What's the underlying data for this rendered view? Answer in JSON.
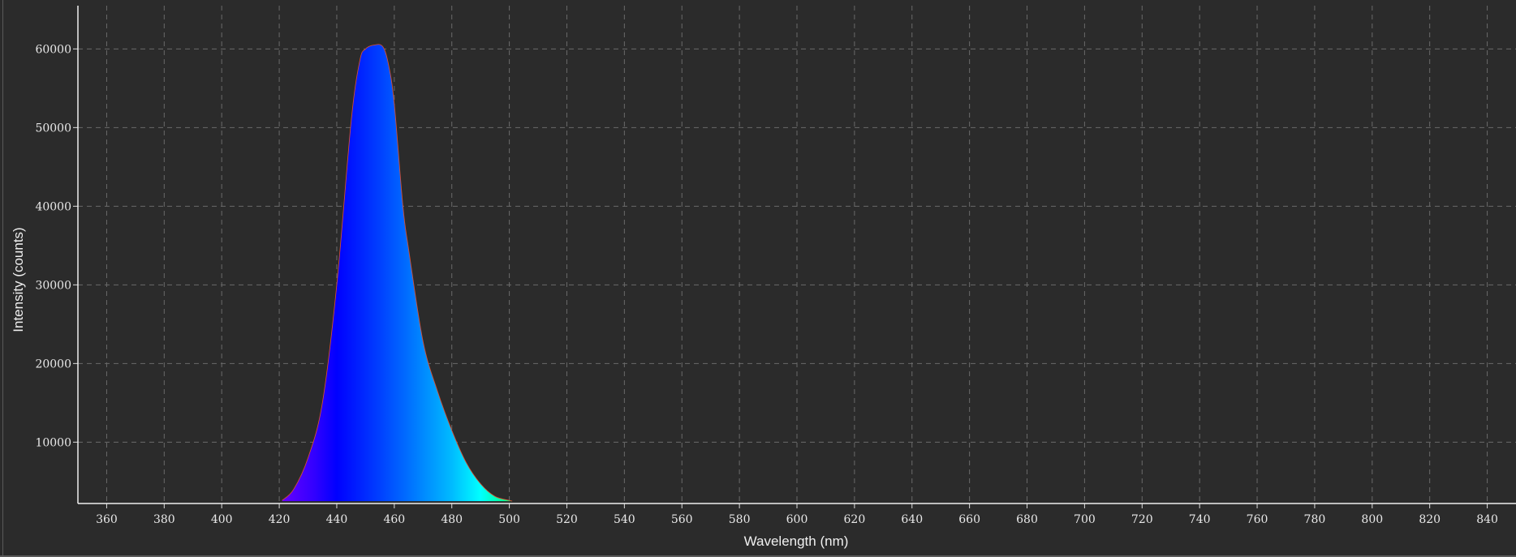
{
  "chart_data": {
    "type": "area",
    "title": "",
    "xlabel": "Wavelength (nm)",
    "ylabel": "Intensity (counts)",
    "xlim": [
      350,
      850
    ],
    "ylim": [
      2200,
      65500
    ],
    "xticks": [
      360,
      380,
      400,
      420,
      440,
      460,
      480,
      500,
      520,
      540,
      560,
      580,
      600,
      620,
      640,
      660,
      680,
      700,
      720,
      740,
      760,
      780,
      800,
      820,
      840
    ],
    "yticks": [
      10000,
      20000,
      30000,
      40000,
      50000,
      60000
    ],
    "grid": true,
    "fill": "wavelength-colored spectrum gradient",
    "outline_color": "#e05030",
    "background": "#2b2b2b",
    "series": [
      {
        "x": [
          421,
          425,
          430,
          435,
          440,
          445,
          448,
          450,
          453,
          456,
          458,
          460,
          463,
          465,
          470,
          475,
          480,
          485,
          490,
          495,
          500,
          501
        ],
        "y": [
          2600,
          4000,
          8000,
          15000,
          30000,
          50800,
          58500,
          60000,
          60500,
          60300,
          58000,
          53000,
          40000,
          34500,
          22800,
          16500,
          11500,
          7400,
          4700,
          3100,
          2600,
          2500
        ]
      }
    ]
  }
}
